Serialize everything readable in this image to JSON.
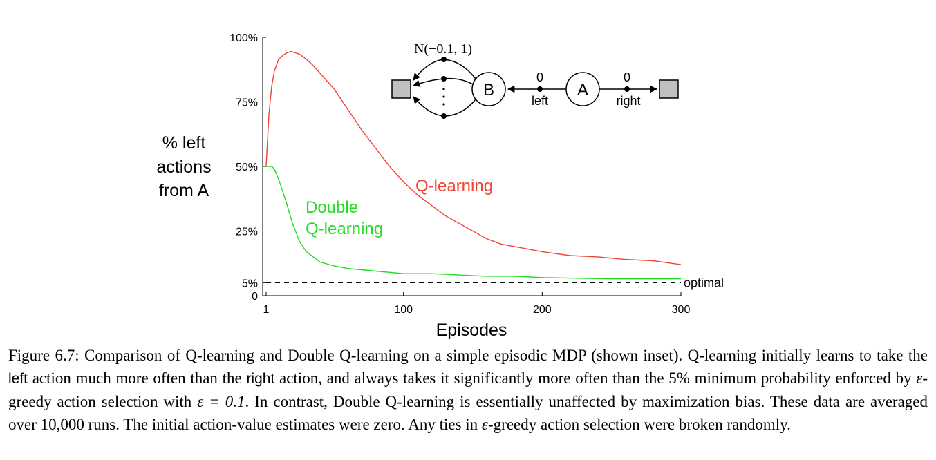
{
  "chart_data": {
    "type": "line",
    "title": "",
    "ylabel_lines": [
      "% left",
      "actions",
      "from A"
    ],
    "xlabel": "Episodes",
    "xlim": [
      1,
      300
    ],
    "ylim": [
      0,
      100
    ],
    "xticks": [
      {
        "value": 1,
        "label": "1"
      },
      {
        "value": 100,
        "label": "100"
      },
      {
        "value": 200,
        "label": "200"
      },
      {
        "value": 300,
        "label": "300"
      }
    ],
    "yticks": [
      {
        "value": 0,
        "label": "0"
      },
      {
        "value": 5,
        "label": "5%"
      },
      {
        "value": 25,
        "label": "25%"
      },
      {
        "value": 50,
        "label": "50%"
      },
      {
        "value": 75,
        "label": "75%"
      },
      {
        "value": 100,
        "label": "100%"
      }
    ],
    "series": [
      {
        "name": "Q-learning",
        "color": "#ee4433",
        "x": [
          1,
          3,
          5,
          7,
          10,
          13,
          16,
          19,
          22,
          25,
          30,
          35,
          40,
          50,
          60,
          70,
          80,
          90,
          100,
          110,
          120,
          130,
          140,
          150,
          160,
          170,
          180,
          190,
          200,
          220,
          240,
          260,
          280,
          300
        ],
        "y": [
          50,
          70,
          81,
          87,
          91.5,
          93,
          94,
          94.5,
          94,
          93.5,
          91.5,
          89,
          86,
          80,
          72,
          64,
          57,
          50,
          44,
          39,
          35,
          31,
          28,
          25,
          22,
          20,
          19,
          18,
          17,
          15.5,
          15,
          14,
          13.5,
          12
        ]
      },
      {
        "name": "Double Q-learning",
        "label_lines": [
          "Double",
          "Q-learning"
        ],
        "color": "#22dd22",
        "x": [
          1,
          3,
          5,
          7,
          10,
          15,
          20,
          25,
          30,
          40,
          50,
          60,
          80,
          100,
          120,
          140,
          160,
          180,
          200,
          250,
          300
        ],
        "y": [
          50,
          50,
          50,
          49,
          45,
          37,
          28,
          21,
          17,
          13,
          11.5,
          10.5,
          9.5,
          8.5,
          8.5,
          8,
          7.5,
          7.5,
          7,
          6.5,
          6.5
        ]
      }
    ],
    "reference_line": {
      "value": 5,
      "label": "optimal",
      "style": "dashed"
    },
    "grid": false,
    "legend": "none (inline labels)"
  },
  "inset": {
    "noise_label": "N(−0.1, 1)",
    "state_b": "B",
    "state_a": "A",
    "left_reward": "0",
    "left_action": "left",
    "right_reward": "0",
    "right_action": "right"
  },
  "caption": {
    "label": "Figure 6.7:",
    "part1": " Comparison of Q-learning and Double Q-learning on a simple episodic MDP (shown inset). Q-learning initially learns to take the ",
    "kw_left": "left",
    "part2": " action much more often than the ",
    "kw_right": "right",
    "part3": " action, and always takes it significantly more often than the 5% minimum probability enforced by ",
    "eps1": "ε",
    "part4": "-greedy action selection with ",
    "eps_eq": "ε = 0.1",
    "part5": ". In contrast, Double Q-learning is essentially unaffected by maximization bias. These data are averaged over 10,000 runs. The initial action-value estimates were zero. Any ties in ",
    "eps2": "ε",
    "part6": "-greedy action selection were broken randomly."
  }
}
